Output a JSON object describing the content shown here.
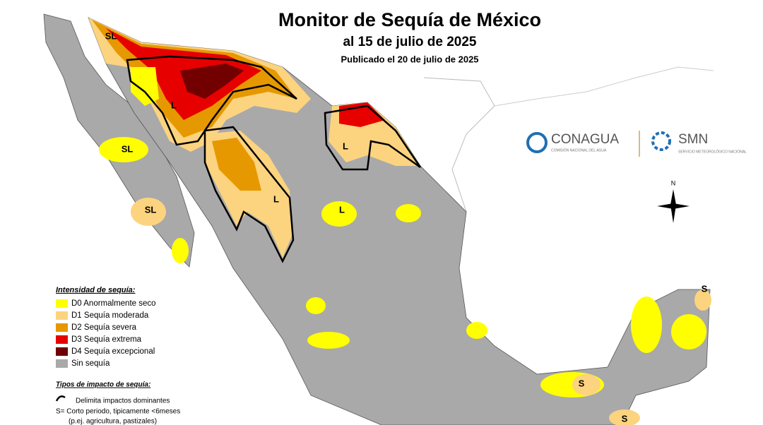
{
  "header": {
    "title": "Monitor de Sequía de México",
    "date": "al 15 de julio de 2025",
    "published": "Publicado el 20 de julio de 2025"
  },
  "logos": {
    "conagua": "CONAGUA",
    "conagua_sub": "COMISIÓN NACIONAL DEL AGUA",
    "smn": "SMN",
    "smn_sub": "SERVICIO METEOROLÓGICO NACIONAL"
  },
  "compass": "N",
  "map": {
    "labels": [
      "SL",
      "SL",
      "SL",
      "L",
      "L",
      "L",
      "L",
      "S",
      "S",
      "S"
    ]
  },
  "legend": {
    "title": "Intensidad de sequía:",
    "items": [
      {
        "label": "D0 Anormalmente seco",
        "color": "#ffff00"
      },
      {
        "label": "D1 Sequía moderada",
        "color": "#fcd37f"
      },
      {
        "label": "D2 Sequía severa",
        "color": "#e69800"
      },
      {
        "label": "D3 Sequía extrema",
        "color": "#e60000"
      },
      {
        "label": "D4 Sequía excepcional",
        "color": "#730000"
      },
      {
        "label": "Sin sequía",
        "color": "#a9a9a9"
      }
    ]
  },
  "impacts": {
    "title": "Tipos de impacto de sequía:",
    "items": [
      "Delimita impactos dominantes",
      "S= Corto periodo, tipicamente <6meses",
      "(p.ej. agricultura, pastizales)"
    ]
  }
}
